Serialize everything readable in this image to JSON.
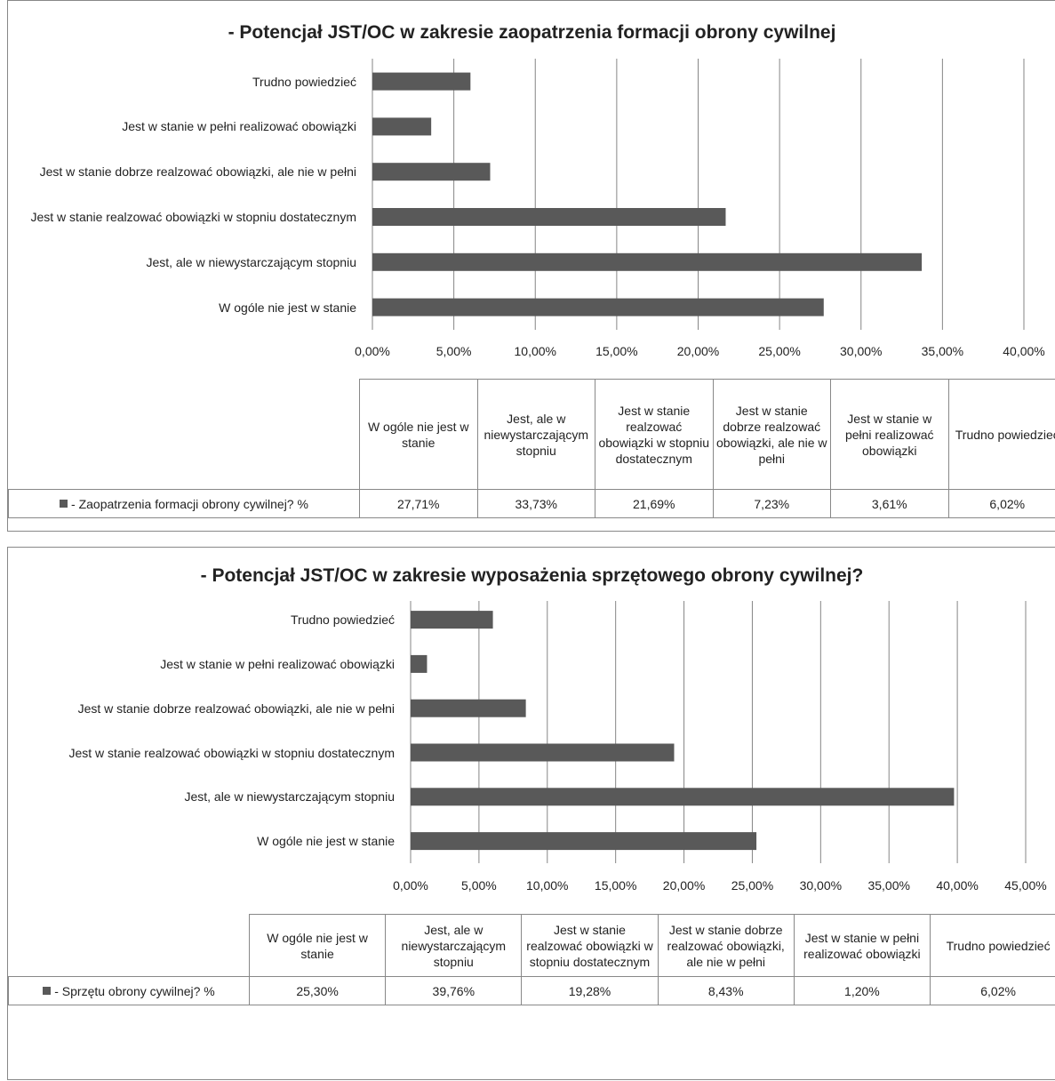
{
  "chart_data": [
    {
      "type": "bar",
      "orientation": "horizontal",
      "title": "- Potencjał JST/OC  w zakresie zaopatrzenia formacji obrony cywilnej",
      "categories": [
        "W ogóle nie jest w stanie",
        "Jest, ale w niewystarczającym stopniu",
        "Jest w stanie realzować obowiązki w stopniu dostatecznym",
        "Jest w stanie dobrze realzować  obowiązki, ale nie w pełni",
        "Jest w stanie w pełni realizować obowiązki",
        "Trudno powiedzieć"
      ],
      "series": [
        {
          "name": "- Zaopatrzenia formacji obrony cywilnej? %",
          "color": "#595959",
          "values": [
            27.71,
            33.73,
            21.69,
            7.23,
            3.61,
            6.02
          ],
          "value_labels": [
            "27,71%",
            "33,73%",
            "21,69%",
            "7,23%",
            "3,61%",
            "6,02%"
          ]
        }
      ],
      "xlim": [
        0,
        40
      ],
      "xticks": [
        {
          "value": 0,
          "label": "0,00%"
        },
        {
          "value": 5,
          "label": "5,00%"
        },
        {
          "value": 10,
          "label": "10,00%"
        },
        {
          "value": 15,
          "label": "15,00%"
        },
        {
          "value": 20,
          "label": "20,00%"
        },
        {
          "value": 25,
          "label": "25,00%"
        },
        {
          "value": 30,
          "label": "30,00%"
        },
        {
          "value": 35,
          "label": "35,00%"
        },
        {
          "value": 40,
          "label": "40,00%"
        }
      ],
      "grid": true,
      "data_table": true
    },
    {
      "type": "bar",
      "orientation": "horizontal",
      "title": "- Potencjał JST/OC w zakresie wyposażenia sprzętowego obrony cywilnej?",
      "categories": [
        "W ogóle nie jest w stanie",
        "Jest, ale w niewystarczającym stopniu",
        "Jest w stanie realzować obowiązki w stopniu dostatecznym",
        "Jest w stanie dobrze realzować  obowiązki, ale nie w pełni",
        "Jest w stanie w pełni realizować obowiązki",
        "Trudno powiedzieć"
      ],
      "series": [
        {
          "name": "- Sprzętu obrony cywilnej? %",
          "color": "#595959",
          "values": [
            25.3,
            39.76,
            19.28,
            8.43,
            1.2,
            6.02
          ],
          "value_labels": [
            "25,30%",
            "39,76%",
            "19,28%",
            "8,43%",
            "1,20%",
            "6,02%"
          ]
        }
      ],
      "xlim": [
        0,
        45
      ],
      "xticks": [
        {
          "value": 0,
          "label": "0,00%"
        },
        {
          "value": 5,
          "label": "5,00%"
        },
        {
          "value": 10,
          "label": "10,00%"
        },
        {
          "value": 15,
          "label": "15,00%"
        },
        {
          "value": 20,
          "label": "20,00%"
        },
        {
          "value": 25,
          "label": "25,00%"
        },
        {
          "value": 30,
          "label": "30,00%"
        },
        {
          "value": 35,
          "label": "35,00%"
        },
        {
          "value": 40,
          "label": "40,00%"
        },
        {
          "value": 45,
          "label": "45,00%"
        }
      ],
      "grid": true,
      "data_table": true
    }
  ]
}
